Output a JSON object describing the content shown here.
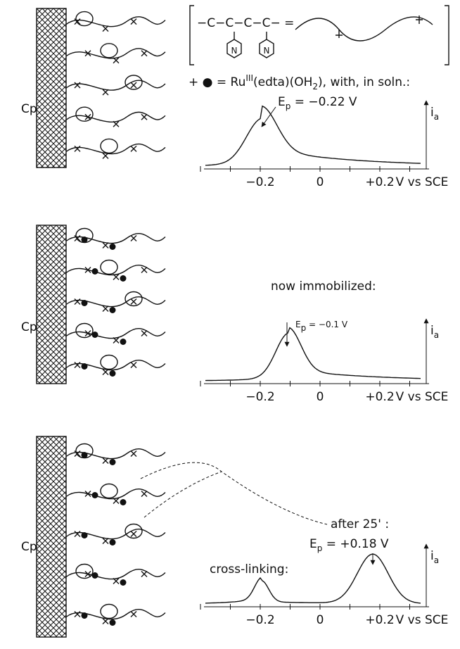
{
  "structure": {
    "formula": "−C−C−C−C− =",
    "atoms": [
      "N",
      "N"
    ]
  },
  "legend": {
    "symbols": "+ ● = Ru",
    "oxidation": "III",
    "ligands": "(edta)(OH",
    "subscript": "2",
    "rest": "), with, in soln.:"
  },
  "panels": [
    {
      "electrode_label": "Cp",
      "caption": null,
      "peak_label": {
        "main": "E",
        "sub": "p",
        "rest": " = −0.22 V"
      },
      "note": null,
      "current_label": {
        "main": "i",
        "sub": "a"
      },
      "axis_labels": [
        "−0.2",
        "0",
        "+0.2",
        "V vs SCE"
      ]
    },
    {
      "electrode_label": "Cp",
      "caption": "now immobilized:",
      "peak_label": {
        "main": "E",
        "sub": "p",
        "rest": " = −0.1 V"
      },
      "note": null,
      "current_label": {
        "main": "i",
        "sub": "a"
      },
      "axis_labels": [
        "−0.2",
        "0",
        "+0.2",
        "V vs SCE"
      ]
    },
    {
      "electrode_label": "Cp",
      "caption": "cross-linking:",
      "peak_label": {
        "main": "E",
        "sub": "p",
        "rest": " = +0.18 V"
      },
      "note": "after 25' :",
      "current_label": {
        "main": "i",
        "sub": "a"
      },
      "axis_labels": [
        "−0.2",
        "0",
        "+0.2",
        "V vs SCE"
      ]
    }
  ]
}
